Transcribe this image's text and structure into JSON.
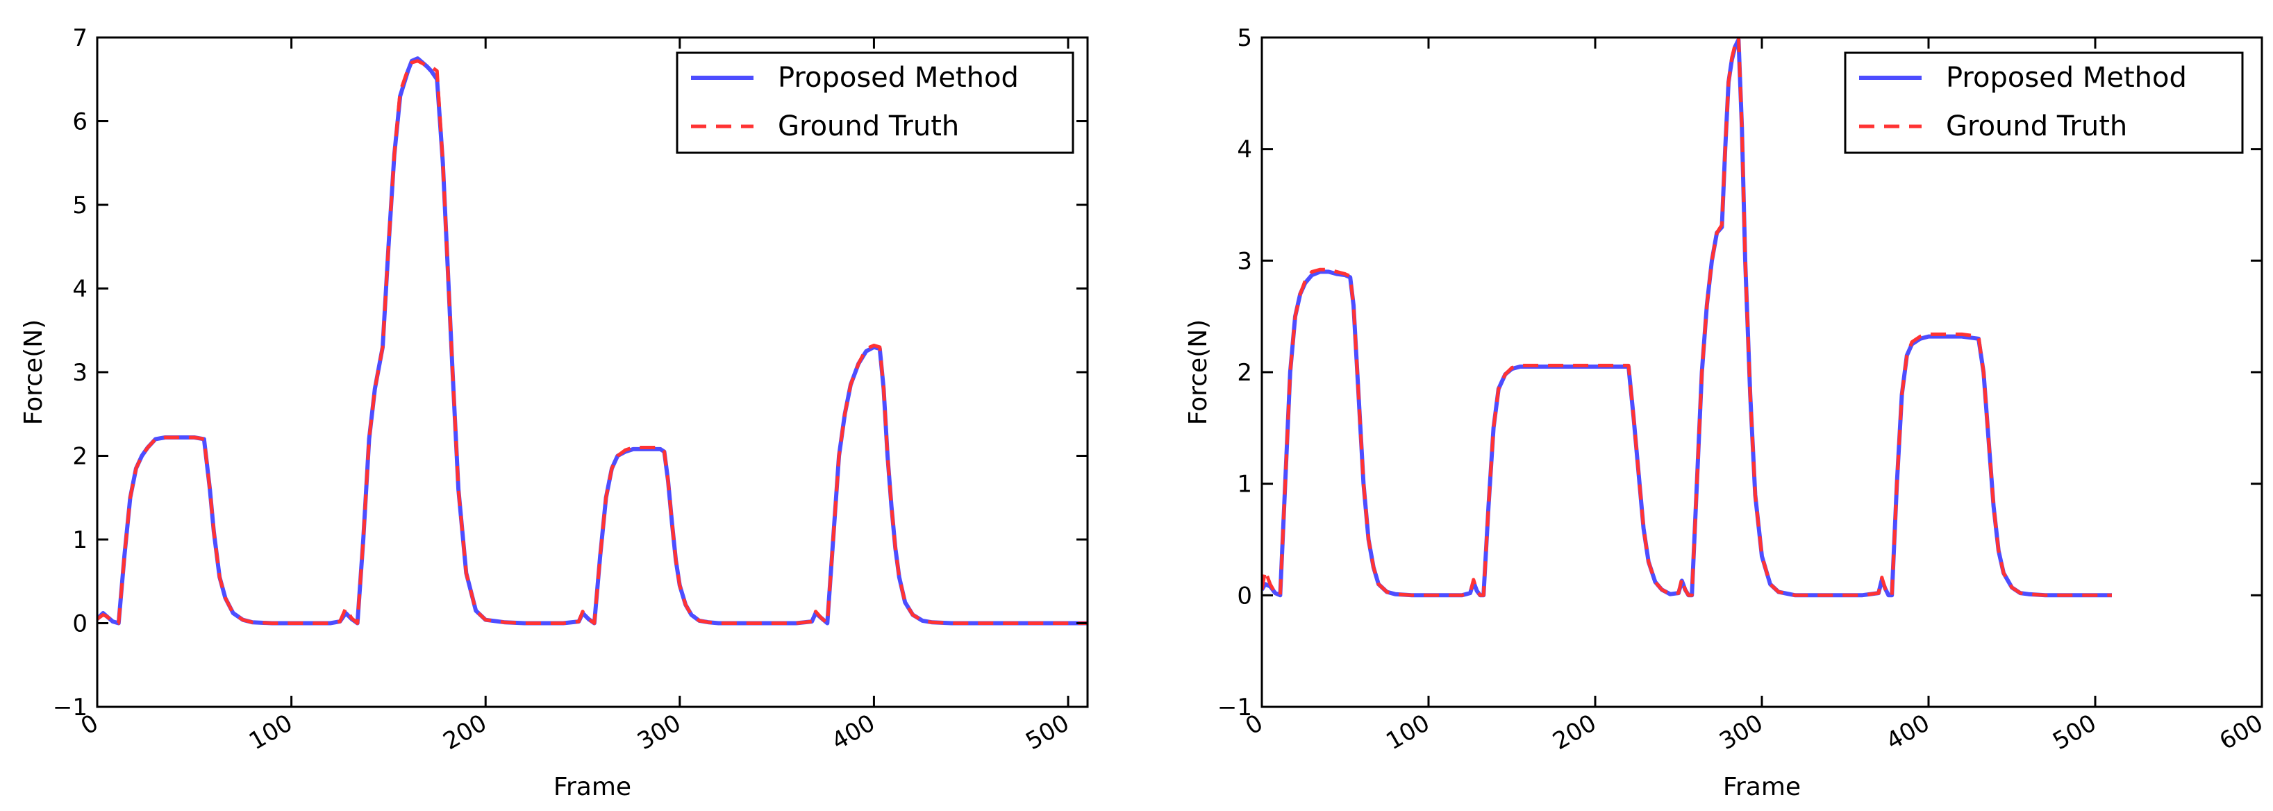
{
  "chart_data": [
    {
      "type": "line",
      "xlabel": "Frame",
      "ylabel": "Force(N)",
      "xlim": [
        0,
        510
      ],
      "ylim": [
        -1,
        7
      ],
      "xticks": [
        "0",
        "100",
        "200",
        "300",
        "400",
        "500"
      ],
      "yticks": [
        "−1",
        "0",
        "1",
        "2",
        "3",
        "4",
        "5",
        "6",
        "7"
      ],
      "legend_position": "top-right",
      "grid": false,
      "series": [
        {
          "name": "Proposed Method",
          "style": "solid",
          "color": "#4d4dff",
          "x": [
            0,
            3,
            5,
            8,
            11,
            14,
            17,
            20,
            23,
            26,
            30,
            35,
            40,
            50,
            55,
            58,
            60,
            63,
            66,
            70,
            75,
            80,
            90,
            100,
            110,
            120,
            125,
            128,
            131,
            134,
            137,
            140,
            143,
            147,
            150,
            153,
            156,
            160,
            162,
            165,
            170,
            172,
            175,
            178,
            180,
            183,
            186,
            190,
            195,
            200,
            210,
            220,
            230,
            240,
            248,
            250,
            253,
            256,
            259,
            262,
            265,
            268,
            272,
            276,
            280,
            285,
            290,
            292,
            294,
            296,
            298,
            300,
            303,
            306,
            310,
            315,
            320,
            330,
            340,
            350,
            360,
            368,
            370,
            373,
            376,
            379,
            382,
            385,
            388,
            392,
            396,
            400,
            403,
            405,
            407,
            409,
            411,
            413,
            416,
            420,
            425,
            430,
            440,
            460,
            480,
            500,
            510
          ],
          "y": [
            0.05,
            0.12,
            0.08,
            0.02,
            0.0,
            0.8,
            1.5,
            1.85,
            2.0,
            2.1,
            2.2,
            2.22,
            2.22,
            2.22,
            2.2,
            1.6,
            1.1,
            0.55,
            0.3,
            0.12,
            0.04,
            0.01,
            0.0,
            0.0,
            0.0,
            0.0,
            0.02,
            0.12,
            0.05,
            0.0,
            1.0,
            2.2,
            2.8,
            3.3,
            4.5,
            5.6,
            6.3,
            6.6,
            6.72,
            6.75,
            6.65,
            6.6,
            6.5,
            5.5,
            4.5,
            3.0,
            1.6,
            0.6,
            0.15,
            0.04,
            0.01,
            0.0,
            0.0,
            0.0,
            0.02,
            0.12,
            0.05,
            0.0,
            0.8,
            1.5,
            1.85,
            2.0,
            2.05,
            2.08,
            2.08,
            2.08,
            2.08,
            2.05,
            1.7,
            1.2,
            0.75,
            0.45,
            0.22,
            0.1,
            0.03,
            0.01,
            0.0,
            0.0,
            0.0,
            0.0,
            0.0,
            0.02,
            0.12,
            0.06,
            0.0,
            1.0,
            2.0,
            2.5,
            2.85,
            3.1,
            3.25,
            3.3,
            3.28,
            2.8,
            2.0,
            1.4,
            0.9,
            0.55,
            0.25,
            0.1,
            0.03,
            0.01,
            0.0,
            0.0,
            0.0,
            0.0,
            0.0
          ]
        },
        {
          "name": "Ground Truth",
          "style": "dashed",
          "color": "#ff3333",
          "x": [
            0,
            3,
            5,
            8,
            11,
            14,
            17,
            20,
            23,
            26,
            30,
            35,
            40,
            50,
            55,
            58,
            60,
            63,
            66,
            70,
            75,
            80,
            90,
            100,
            110,
            120,
            125,
            128,
            131,
            134,
            137,
            140,
            143,
            147,
            150,
            153,
            156,
            160,
            162,
            165,
            170,
            172,
            175,
            178,
            180,
            183,
            186,
            190,
            195,
            200,
            210,
            220,
            230,
            240,
            248,
            250,
            253,
            256,
            259,
            262,
            265,
            268,
            272,
            276,
            280,
            285,
            290,
            292,
            294,
            296,
            298,
            300,
            303,
            306,
            310,
            315,
            320,
            330,
            340,
            350,
            360,
            368,
            370,
            373,
            376,
            379,
            382,
            385,
            388,
            392,
            396,
            400,
            403,
            405,
            407,
            409,
            411,
            413,
            416,
            420,
            425,
            430,
            440,
            460,
            480,
            500,
            510
          ],
          "y": [
            0.05,
            0.1,
            0.08,
            0.02,
            0.0,
            0.8,
            1.5,
            1.85,
            2.0,
            2.1,
            2.2,
            2.22,
            2.22,
            2.22,
            2.2,
            1.6,
            1.1,
            0.55,
            0.3,
            0.12,
            0.04,
            0.01,
            0.0,
            0.0,
            0.0,
            0.0,
            0.02,
            0.18,
            0.06,
            0.0,
            1.0,
            2.2,
            2.8,
            3.3,
            4.5,
            5.6,
            6.35,
            6.62,
            6.7,
            6.72,
            6.66,
            6.65,
            6.6,
            5.5,
            4.5,
            3.0,
            1.6,
            0.6,
            0.15,
            0.04,
            0.01,
            0.0,
            0.0,
            0.0,
            0.02,
            0.14,
            0.05,
            0.0,
            0.8,
            1.5,
            1.85,
            2.0,
            2.07,
            2.1,
            2.1,
            2.1,
            2.1,
            2.05,
            1.7,
            1.2,
            0.75,
            0.45,
            0.22,
            0.1,
            0.03,
            0.01,
            0.0,
            0.0,
            0.0,
            0.0,
            0.0,
            0.02,
            0.14,
            0.06,
            0.0,
            1.0,
            2.0,
            2.5,
            2.85,
            3.1,
            3.28,
            3.32,
            3.3,
            2.8,
            2.0,
            1.4,
            0.9,
            0.55,
            0.25,
            0.1,
            0.03,
            0.01,
            0.0,
            0.0,
            0.0,
            0.0,
            0.0
          ]
        }
      ]
    },
    {
      "type": "line",
      "xlabel": "Frame",
      "ylabel": "Force(N)",
      "xlim": [
        0,
        600
      ],
      "ylim": [
        -1,
        5
      ],
      "xticks": [
        "0",
        "100",
        "200",
        "300",
        "400",
        "500",
        "600"
      ],
      "yticks": [
        "−1",
        "0",
        "1",
        "2",
        "3",
        "4",
        "5"
      ],
      "legend_position": "top-right",
      "grid": false,
      "series": [
        {
          "name": "Proposed Method",
          "style": "solid",
          "color": "#4d4dff",
          "x": [
            0,
            2,
            5,
            8,
            11,
            14,
            17,
            20,
            23,
            26,
            30,
            35,
            40,
            45,
            50,
            53,
            55,
            58,
            61,
            64,
            67,
            70,
            75,
            80,
            90,
            100,
            110,
            120,
            125,
            127,
            129,
            131,
            133,
            136,
            139,
            142,
            146,
            150,
            155,
            160,
            170,
            190,
            210,
            220,
            223,
            226,
            229,
            232,
            236,
            240,
            245,
            250,
            252,
            254,
            256,
            258,
            261,
            264,
            267,
            270,
            273,
            276,
            278,
            280,
            282,
            284,
            286,
            288,
            290,
            293,
            296,
            300,
            305,
            310,
            320,
            340,
            360,
            370,
            372,
            374,
            376,
            378,
            381,
            384,
            387,
            390,
            395,
            400,
            410,
            420,
            430,
            433,
            436,
            439,
            442,
            445,
            450,
            455,
            460,
            470,
            480,
            490,
            500,
            510
          ],
          "y": [
            0.05,
            0.1,
            0.08,
            0.02,
            0.0,
            1.0,
            2.0,
            2.5,
            2.7,
            2.8,
            2.87,
            2.9,
            2.9,
            2.88,
            2.87,
            2.85,
            2.6,
            1.8,
            1.0,
            0.5,
            0.25,
            0.1,
            0.03,
            0.01,
            0.0,
            0.0,
            0.0,
            0.0,
            0.02,
            0.12,
            0.04,
            0.0,
            0.0,
            0.8,
            1.5,
            1.85,
            1.98,
            2.03,
            2.05,
            2.05,
            2.05,
            2.05,
            2.05,
            2.05,
            1.6,
            1.1,
            0.6,
            0.3,
            0.12,
            0.05,
            0.01,
            0.02,
            0.13,
            0.05,
            0.0,
            0.0,
            1.0,
            2.0,
            2.6,
            3.0,
            3.25,
            3.3,
            4.0,
            4.6,
            4.8,
            4.92,
            4.98,
            4.2,
            3.0,
            1.8,
            0.9,
            0.35,
            0.1,
            0.03,
            0.0,
            0.0,
            0.0,
            0.02,
            0.14,
            0.06,
            0.0,
            0.0,
            1.0,
            1.8,
            2.15,
            2.25,
            2.3,
            2.32,
            2.32,
            2.32,
            2.3,
            2.0,
            1.4,
            0.8,
            0.4,
            0.2,
            0.07,
            0.02,
            0.01,
            0.0,
            0.0,
            0.0,
            0.0,
            0.0
          ]
        },
        {
          "name": "Ground Truth",
          "style": "dashed",
          "color": "#ff3333",
          "x": [
            0,
            2,
            5,
            8,
            11,
            14,
            17,
            20,
            23,
            26,
            30,
            35,
            40,
            45,
            50,
            53,
            55,
            58,
            61,
            64,
            67,
            70,
            75,
            80,
            90,
            100,
            110,
            120,
            125,
            127,
            129,
            131,
            133,
            136,
            139,
            142,
            146,
            150,
            155,
            160,
            170,
            190,
            210,
            220,
            223,
            226,
            229,
            232,
            236,
            240,
            245,
            250,
            252,
            254,
            256,
            258,
            261,
            264,
            267,
            270,
            273,
            276,
            278,
            280,
            282,
            284,
            286,
            288,
            290,
            293,
            296,
            300,
            305,
            310,
            320,
            340,
            360,
            370,
            372,
            374,
            376,
            378,
            381,
            384,
            387,
            390,
            395,
            400,
            410,
            420,
            430,
            433,
            436,
            439,
            442,
            445,
            450,
            455,
            460,
            470,
            480,
            490,
            500,
            510
          ],
          "y": [
            0.05,
            0.22,
            0.1,
            0.02,
            0.0,
            1.0,
            2.0,
            2.5,
            2.7,
            2.82,
            2.9,
            2.92,
            2.92,
            2.9,
            2.88,
            2.86,
            2.6,
            1.8,
            1.0,
            0.5,
            0.25,
            0.1,
            0.03,
            0.01,
            0.0,
            0.0,
            0.0,
            0.0,
            0.02,
            0.14,
            0.04,
            0.0,
            0.0,
            0.8,
            1.5,
            1.85,
            1.98,
            2.04,
            2.06,
            2.06,
            2.06,
            2.06,
            2.06,
            2.06,
            1.6,
            1.1,
            0.6,
            0.3,
            0.12,
            0.05,
            0.01,
            0.02,
            0.15,
            0.05,
            0.0,
            0.0,
            1.0,
            2.0,
            2.6,
            3.0,
            3.25,
            3.32,
            4.0,
            4.6,
            4.82,
            4.94,
            5.0,
            4.2,
            3.0,
            1.8,
            0.9,
            0.35,
            0.1,
            0.03,
            0.0,
            0.0,
            0.0,
            0.02,
            0.16,
            0.06,
            0.0,
            0.0,
            1.0,
            1.8,
            2.15,
            2.27,
            2.32,
            2.34,
            2.34,
            2.34,
            2.32,
            2.0,
            1.4,
            0.8,
            0.4,
            0.2,
            0.07,
            0.02,
            0.01,
            0.0,
            0.0,
            0.0,
            0.0,
            0.0
          ]
        }
      ]
    }
  ]
}
